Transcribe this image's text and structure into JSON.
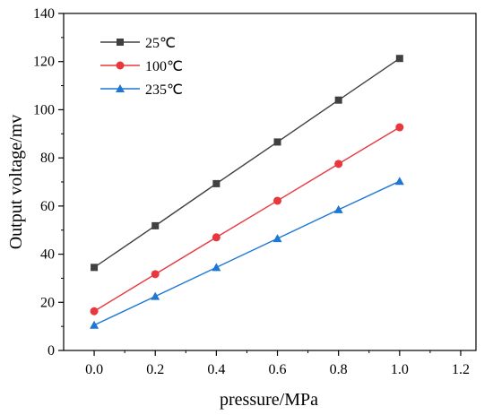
{
  "chart_data": {
    "type": "line",
    "title": "",
    "xlabel": "pressure/MPa",
    "ylabel": "Output voltage/mv",
    "xlim": [
      -0.1,
      1.25
    ],
    "ylim": [
      0,
      140
    ],
    "x_ticks": [
      "0.0",
      "0.2",
      "0.4",
      "0.6",
      "0.8",
      "1.0",
      "1.2"
    ],
    "y_ticks": [
      "0",
      "20",
      "40",
      "60",
      "80",
      "100",
      "120",
      "140"
    ],
    "grid": false,
    "legend_position": "top-left",
    "x": [
      0.0,
      0.2,
      0.4,
      0.6,
      0.8,
      1.0
    ],
    "series": [
      {
        "name": "25℃",
        "values": [
          34.5,
          51.8,
          69.3,
          86.6,
          104.0,
          121.3
        ],
        "color": "#404040",
        "marker": "square"
      },
      {
        "name": "100℃",
        "values": [
          16.3,
          31.7,
          47.0,
          62.2,
          77.5,
          92.7
        ],
        "color": "#e8383d",
        "marker": "circle"
      },
      {
        "name": "235℃",
        "values": [
          10.5,
          22.5,
          34.5,
          46.5,
          58.5,
          70.3
        ],
        "color": "#1f77d4",
        "marker": "triangle"
      }
    ]
  }
}
